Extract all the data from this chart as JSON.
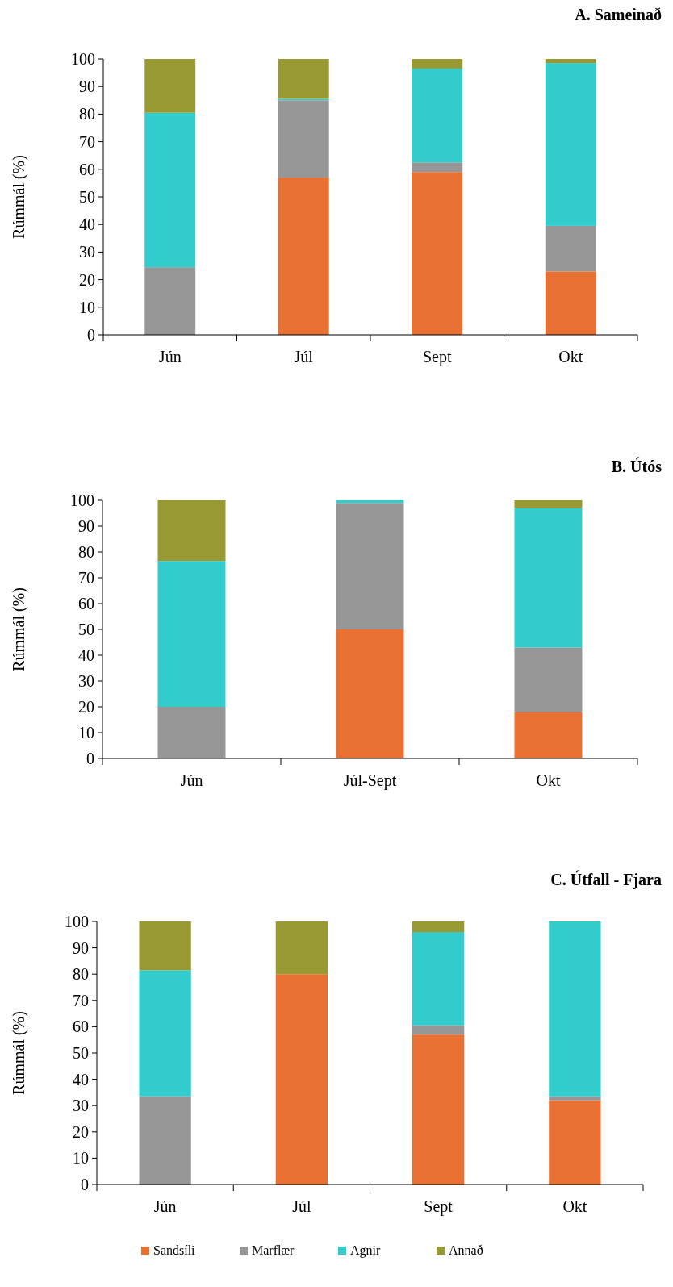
{
  "chart_data": [
    {
      "type": "bar",
      "title": "A.  Sameinað",
      "ylabel": "Rúmmál (%)",
      "categories": [
        "Jún",
        "Júl",
        "Sept",
        "Okt"
      ],
      "stacked": true,
      "ylim": [
        0,
        100
      ],
      "yticks": [
        0,
        10,
        20,
        30,
        40,
        50,
        60,
        70,
        80,
        90,
        100
      ],
      "grid": false,
      "series": [
        {
          "color": "#e87033",
          "values": [
            0,
            57,
            59,
            23
          ]
        },
        {
          "color": "#969696",
          "values": [
            24.5,
            28,
            3.5,
            16.5
          ]
        },
        {
          "color": "#33cccc",
          "values": [
            56,
            0.5,
            34,
            59
          ]
        },
        {
          "color": "#999933",
          "values": [
            19.5,
            14.5,
            3.5,
            1.5
          ]
        }
      ]
    },
    {
      "type": "bar",
      "title": "B.  Útós",
      "ylabel": "Rúmmál (%)",
      "categories": [
        "Jún",
        "Júl-Sept",
        "Okt"
      ],
      "stacked": true,
      "ylim": [
        0,
        100
      ],
      "yticks": [
        0,
        10,
        20,
        30,
        40,
        50,
        60,
        70,
        80,
        90,
        100
      ],
      "grid": false,
      "series": [
        {
          "color": "#e87033",
          "values": [
            0,
            50,
            18
          ]
        },
        {
          "color": "#969696",
          "values": [
            20,
            49,
            25
          ]
        },
        {
          "color": "#33cccc",
          "values": [
            56.5,
            1,
            54
          ]
        },
        {
          "color": "#999933",
          "values": [
            23.5,
            0,
            3
          ]
        }
      ]
    },
    {
      "type": "bar",
      "title": "C. Útfall - Fjara",
      "ylabel": "Rúmmál (%)",
      "categories": [
        "Jún",
        "Júl",
        "Sept",
        "Okt"
      ],
      "stacked": true,
      "ylim": [
        0,
        100
      ],
      "yticks": [
        0,
        10,
        20,
        30,
        40,
        50,
        60,
        70,
        80,
        90,
        100
      ],
      "grid": false,
      "legend": "bottom",
      "series": [
        {
          "name": "Sandsíli",
          "color": "#e87033",
          "values": [
            0,
            80,
            57,
            32
          ]
        },
        {
          "name": "Marflær",
          "color": "#969696",
          "values": [
            33.5,
            0,
            3.5,
            1.5
          ]
        },
        {
          "name": "Agnir",
          "color": "#33cccc",
          "values": [
            48,
            0,
            35.5,
            66.5
          ]
        },
        {
          "name": "Annað",
          "color": "#999933",
          "values": [
            18.5,
            20,
            4,
            0
          ]
        }
      ]
    }
  ]
}
